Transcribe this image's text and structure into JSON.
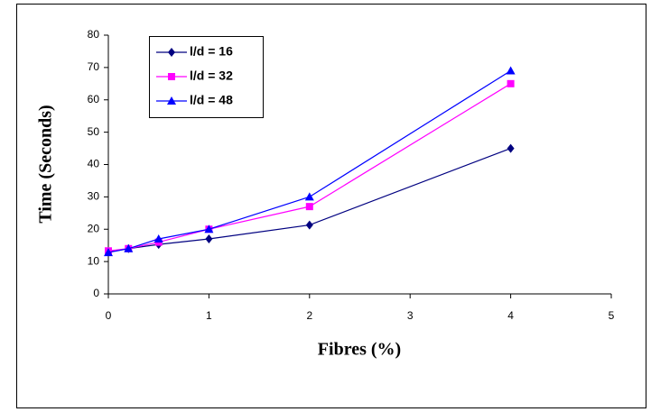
{
  "chart_data": {
    "type": "line",
    "x_label": "Fibres (%)",
    "y_label": "Time (Seconds)",
    "x": [
      0,
      0.2,
      0.5,
      1,
      2,
      4
    ],
    "series": [
      {
        "name": "l/d = 16",
        "color": "#000080",
        "marker": "diamond",
        "values": [
          13,
          14,
          15.3,
          17,
          21.3,
          45
        ]
      },
      {
        "name": "l/d = 32",
        "color": "#ff00ff",
        "marker": "square",
        "values": [
          13.3,
          14,
          16,
          20,
          27,
          65
        ]
      },
      {
        "name": "l/d = 48",
        "color": "#0000ff",
        "marker": "triangle",
        "values": [
          12.8,
          14,
          17,
          20,
          30,
          69
        ]
      }
    ],
    "xlim": [
      0,
      5
    ],
    "xticks": [
      0,
      1,
      2,
      3,
      4,
      5
    ],
    "ylim": [
      0,
      80
    ],
    "yticks": [
      0,
      10,
      20,
      30,
      40,
      50,
      60,
      70,
      80
    ],
    "grid": false,
    "legend_position": "upper-left"
  }
}
